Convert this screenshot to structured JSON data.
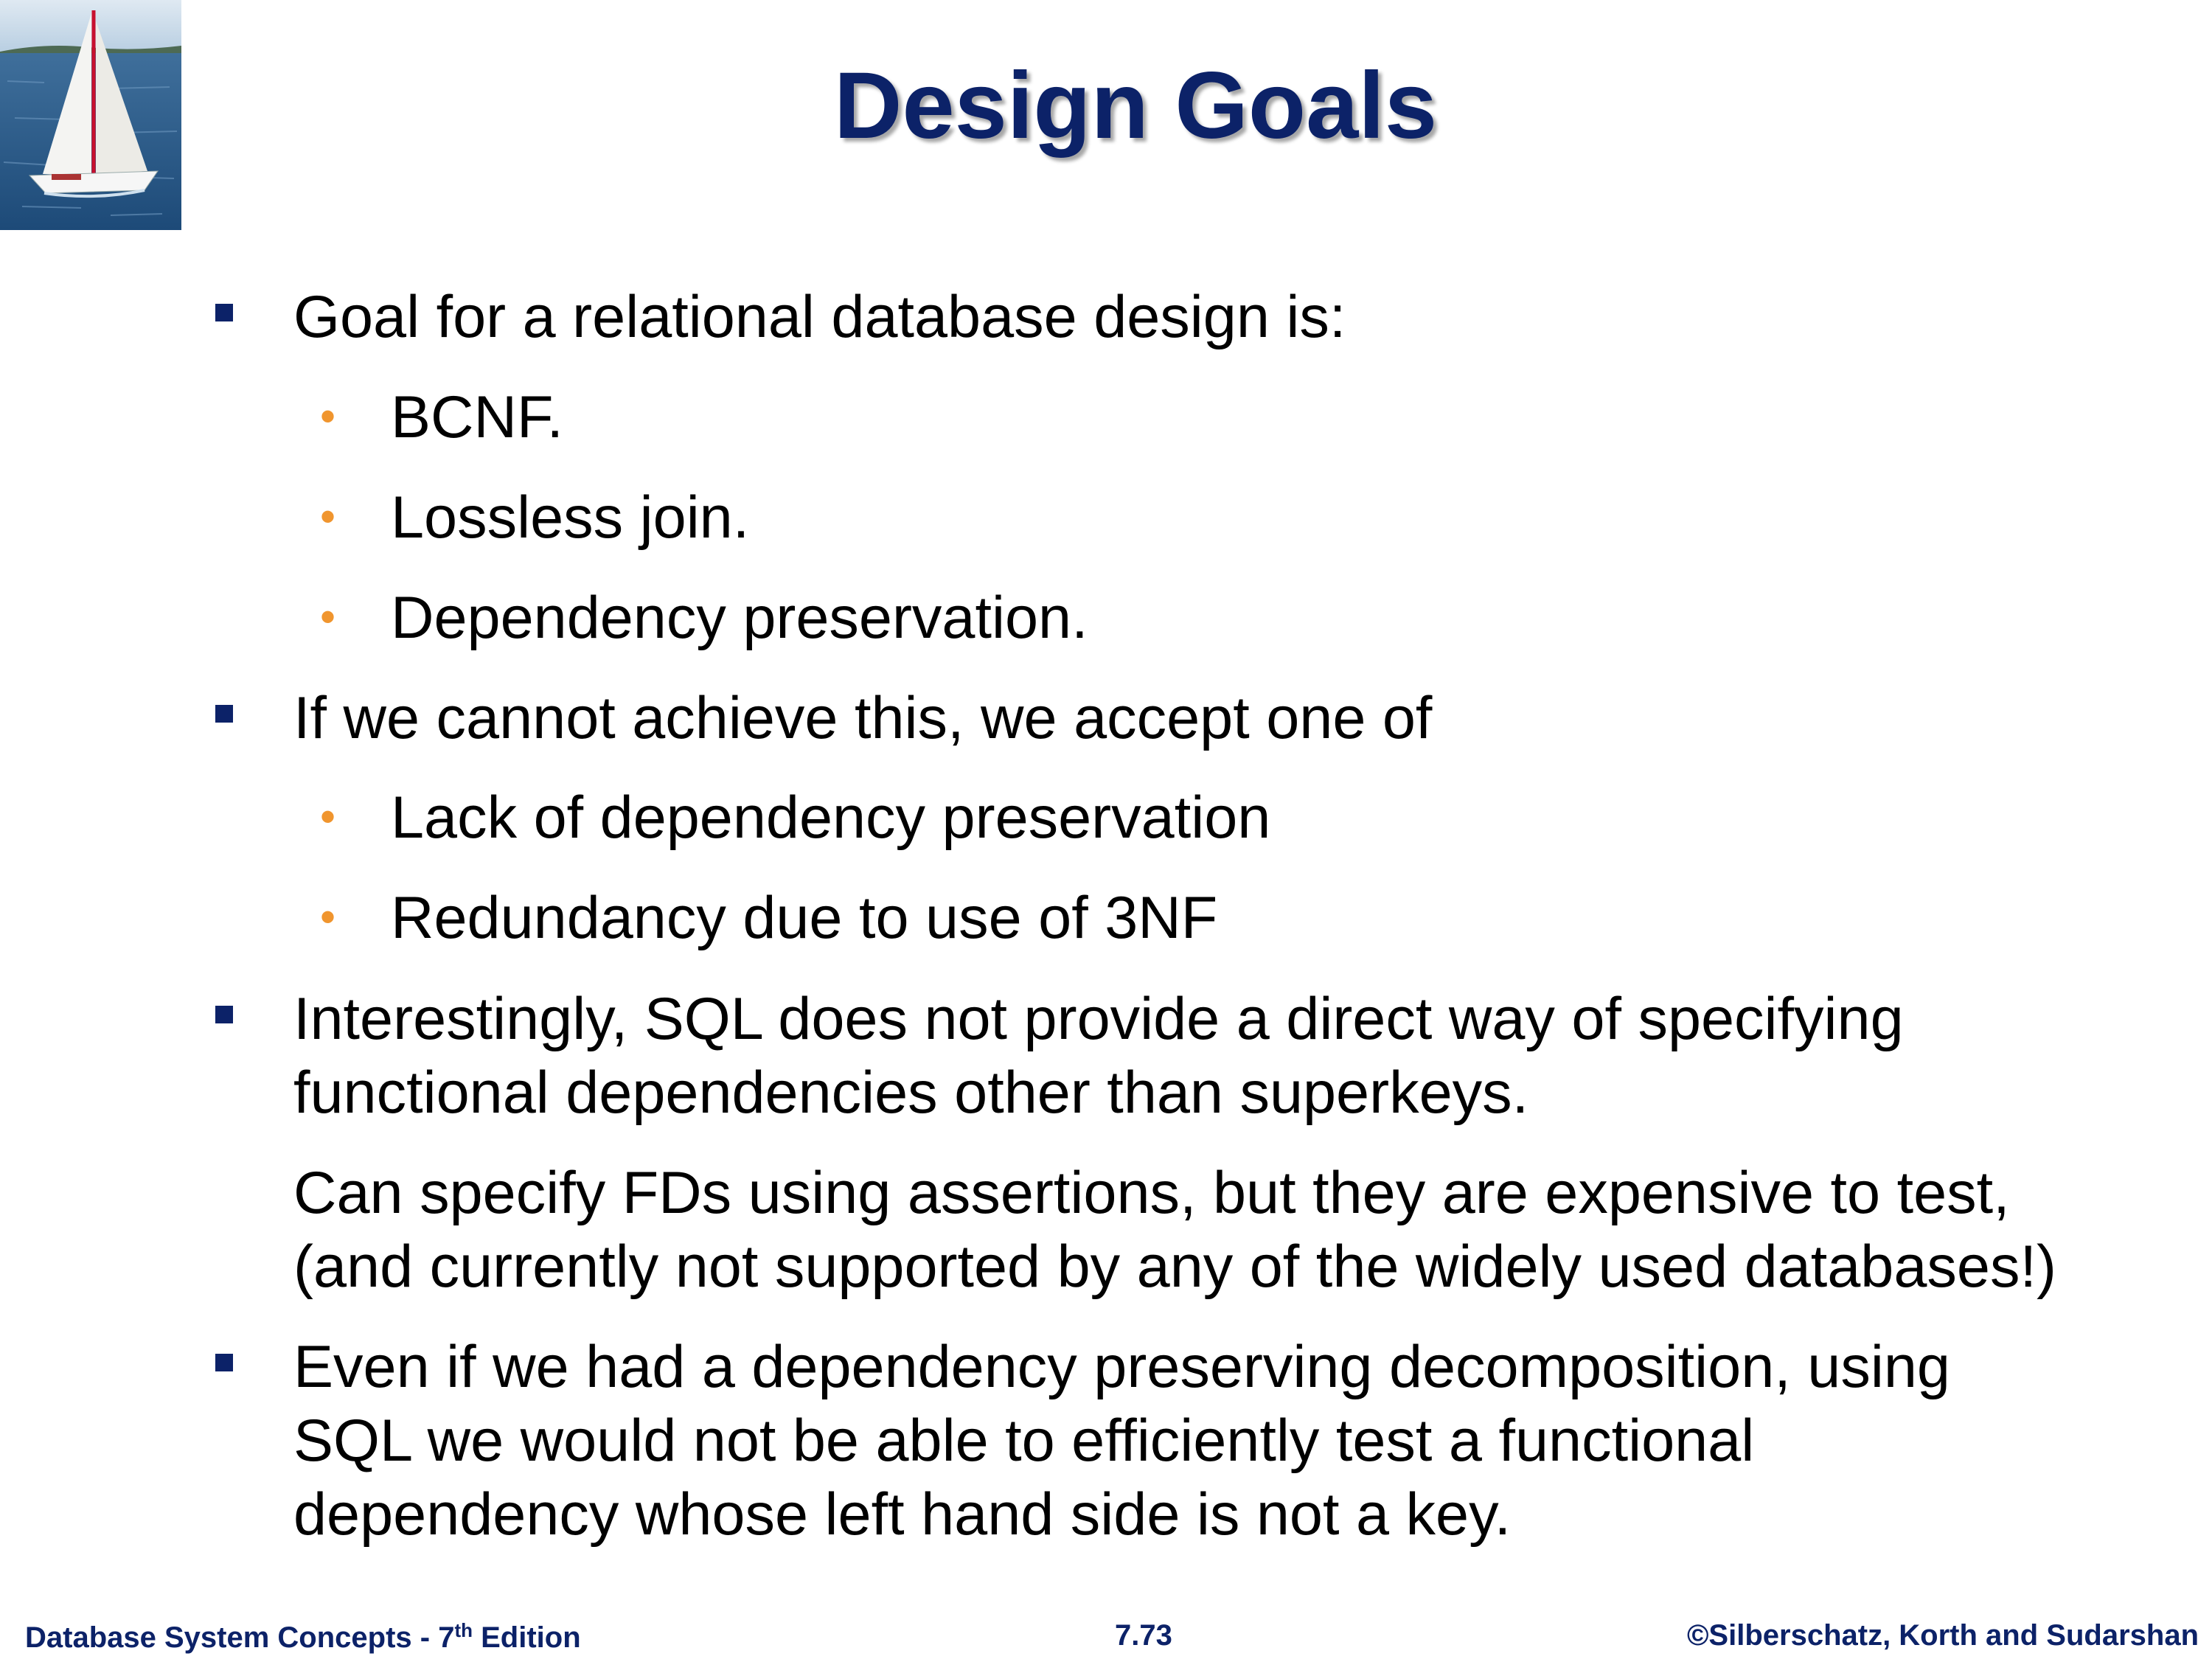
{
  "slide": {
    "title": "Design Goals",
    "bullets": {
      "b1": "Goal for a relational database design is:",
      "b1_sub1": "BCNF.",
      "b1_sub2": "Lossless join.",
      "b1_sub3": "Dependency preservation.",
      "b2": "If we cannot achieve this, we accept one of",
      "b2_sub1": "Lack of dependency preservation",
      "b2_sub2": "Redundancy due to use of 3NF",
      "b3_line1": "Interestingly, SQL does not provide a direct way of specifying",
      "b3_line2": "functional dependencies other than superkeys.",
      "b3_para_line1": "Can specify FDs using assertions, but they are expensive to test,",
      "b3_para_line2": "(and currently not supported by any of the widely used databases!)",
      "b4_line1": "Even if we had a dependency preserving decomposition, using",
      "b4_line2": "SQL we would not be able to efficiently test a functional",
      "b4_line3": "dependency whose left hand side is not a key."
    }
  },
  "footer": {
    "book_prefix": "Database System Concepts - 7",
    "book_sup": "th",
    "book_suffix": " Edition",
    "page": "7.73",
    "copyright": "©Silberschatz, Korth and Sudarshan"
  },
  "logo": {
    "icon": "sailboat-icon"
  },
  "colors": {
    "title": "#0c2268",
    "square_bullet": "#0c2268",
    "dot_bullet": "#f0952e"
  }
}
